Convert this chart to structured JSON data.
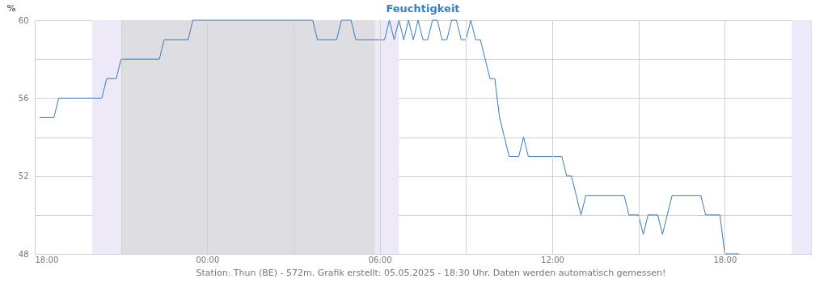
{
  "chart_data": {
    "type": "line",
    "title": "Feuchtigkeit",
    "ylabel": "%",
    "x": [
      "2025-05-04T18:10",
      "2025-05-04T18:40",
      "2025-05-04T18:50",
      "2025-05-04T20:20",
      "2025-05-04T20:30",
      "2025-05-04T20:50",
      "2025-05-04T21:00",
      "2025-05-04T22:20",
      "2025-05-04T22:30",
      "2025-05-04T23:20",
      "2025-05-04T23:30",
      "2025-05-05T03:40",
      "2025-05-05T03:50",
      "2025-05-05T04:30",
      "2025-05-05T04:40",
      "2025-05-05T05:00",
      "2025-05-05T05:10",
      "2025-05-05T06:10",
      "2025-05-05T06:20",
      "2025-05-05T06:30",
      "2025-05-05T06:40",
      "2025-05-05T06:50",
      "2025-05-05T07:00",
      "2025-05-05T07:10",
      "2025-05-05T07:20",
      "2025-05-05T07:30",
      "2025-05-05T07:40",
      "2025-05-05T07:50",
      "2025-05-05T08:00",
      "2025-05-05T08:10",
      "2025-05-05T08:20",
      "2025-05-05T08:30",
      "2025-05-05T08:40",
      "2025-05-05T08:50",
      "2025-05-05T09:00",
      "2025-05-05T09:10",
      "2025-05-05T09:20",
      "2025-05-05T09:30",
      "2025-05-05T09:50",
      "2025-05-05T10:00",
      "2025-05-05T10:10",
      "2025-05-05T10:20",
      "2025-05-05T10:30",
      "2025-05-05T10:50",
      "2025-05-05T11:00",
      "2025-05-05T11:10",
      "2025-05-05T12:20",
      "2025-05-05T12:30",
      "2025-05-05T12:40",
      "2025-05-05T12:50",
      "2025-05-05T13:00",
      "2025-05-05T13:10",
      "2025-05-05T14:30",
      "2025-05-05T14:40",
      "2025-05-05T15:00",
      "2025-05-05T15:10",
      "2025-05-05T15:20",
      "2025-05-05T15:40",
      "2025-05-05T15:50",
      "2025-05-05T16:00",
      "2025-05-05T16:10",
      "2025-05-05T17:10",
      "2025-05-05T17:20",
      "2025-05-05T17:50",
      "2025-05-05T18:00",
      "2025-05-05T18:30"
    ],
    "series": [
      {
        "color": "#3a7ab8",
        "values": [
          55,
          55,
          56,
          56,
          57,
          57,
          58,
          58,
          59,
          59,
          60,
          60,
          59,
          59,
          60,
          60,
          59,
          59,
          60,
          59,
          60,
          59,
          60,
          59,
          60,
          59,
          59,
          60,
          60,
          59,
          59,
          60,
          60,
          59,
          59,
          60,
          59,
          59,
          57,
          57,
          55,
          54,
          53,
          53,
          54,
          53,
          53,
          52,
          52,
          51,
          50,
          51,
          51,
          50,
          50,
          49,
          50,
          50,
          49,
          50,
          51,
          51,
          50,
          50,
          48,
          48
        ]
      }
    ],
    "xlim": [
      "2025-05-04T18:00",
      "2025-05-05T21:00"
    ],
    "xticks": [
      {
        "value": "2025-05-04T18:00",
        "label": "18:00"
      },
      {
        "value": "2025-05-04T21:00",
        "label": null
      },
      {
        "value": "2025-05-05T00:00",
        "label": "00:00"
      },
      {
        "value": "2025-05-05T03:00",
        "label": null
      },
      {
        "value": "2025-05-05T06:00",
        "label": "06:00"
      },
      {
        "value": "2025-05-05T09:00",
        "label": null
      },
      {
        "value": "2025-05-05T12:00",
        "label": "12:00"
      },
      {
        "value": "2025-05-05T15:00",
        "label": null
      },
      {
        "value": "2025-05-05T18:00",
        "label": "18:00"
      }
    ],
    "ylim": [
      48,
      60
    ],
    "yticks": [
      48,
      {
        "value": 50,
        "label": null
      },
      52,
      {
        "value": 54,
        "label": null
      },
      56,
      {
        "value": 58,
        "label": null
      },
      60
    ],
    "grid": true,
    "line_style": "solid",
    "marker": "none",
    "bands": [
      {
        "axis": "x",
        "from": "2025-05-04T20:00",
        "to": "2025-05-04T21:00",
        "color": "#eee9f8"
      },
      {
        "axis": "x",
        "from": "2025-05-04T21:00",
        "to": "2025-05-05T05:50",
        "color": "#dedee2"
      },
      {
        "axis": "x",
        "from": "2025-05-05T05:50",
        "to": "2025-05-05T06:40",
        "color": "#eee9f8"
      },
      {
        "axis": "x",
        "from": "2025-05-05T20:20",
        "to": "2025-05-05T21:00",
        "color": "#eee9f8"
      }
    ],
    "annotations": [
      "Station: Thun (BE) - 572m. Grafik erstellt: 05.05.2025 - 18:30 Uhr. Daten werden automatisch gemessen!"
    ]
  }
}
